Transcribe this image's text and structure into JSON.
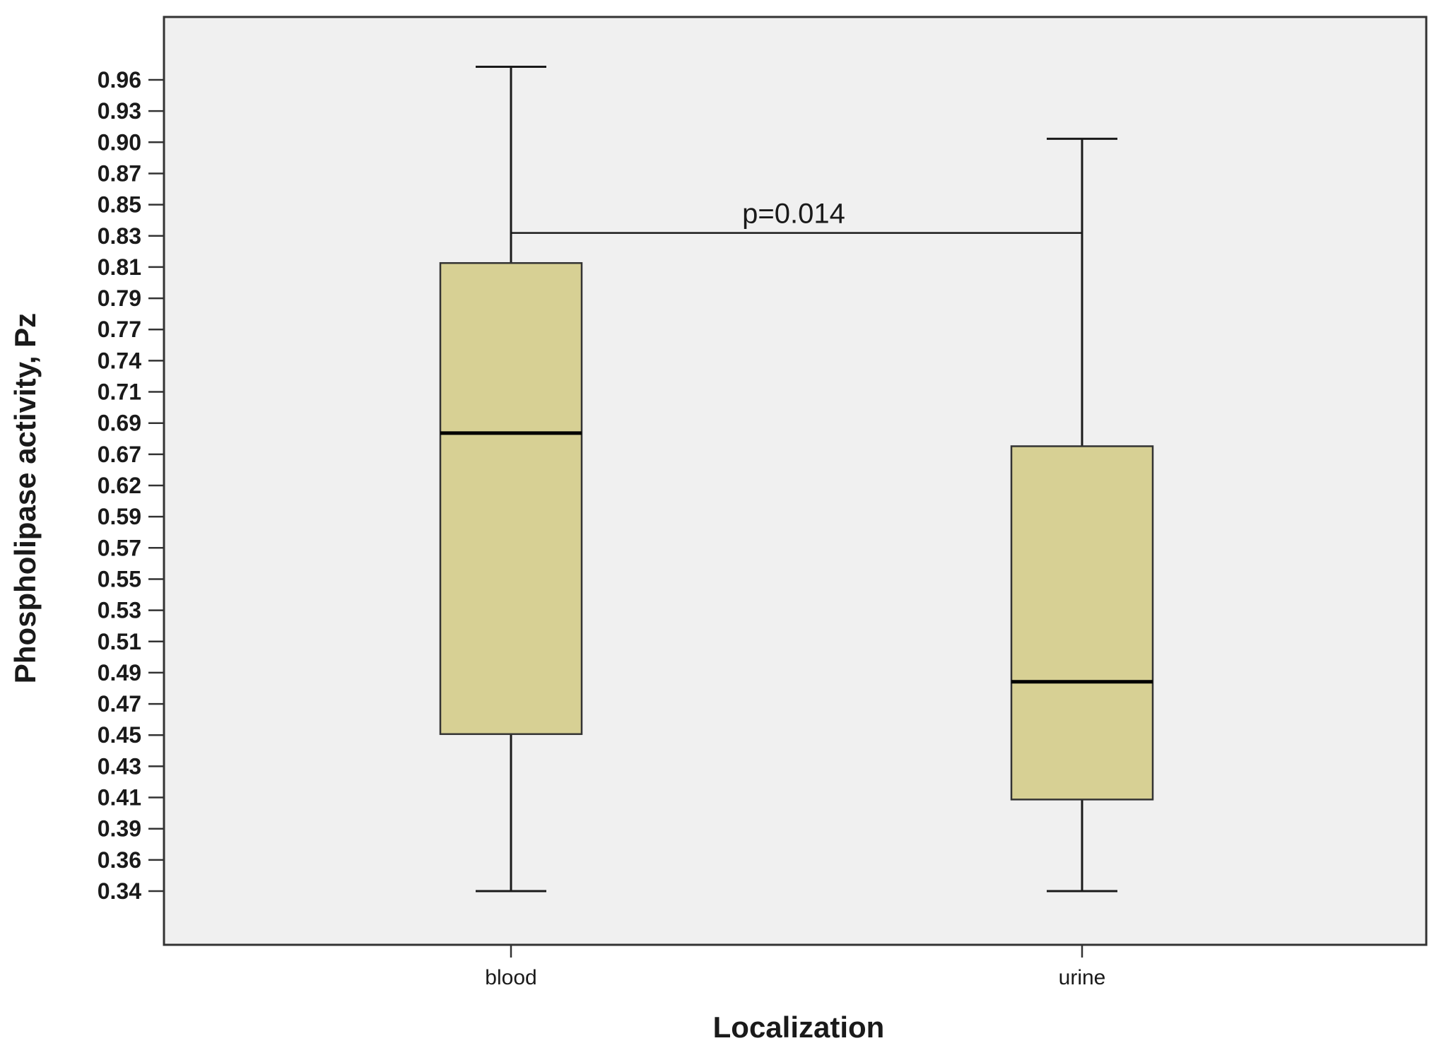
{
  "chart_data": {
    "type": "boxplot",
    "title": "",
    "xlabel": "Localization",
    "ylabel": "Phospholipase activity, Pz",
    "ylim": [
      0.305,
      1.0
    ],
    "yticks": [
      "0.96",
      "0.93",
      "0.90",
      "0.87",
      "0.85",
      "0.83",
      "0.81",
      "0.79",
      "0.77",
      "0.74",
      "0.71",
      "0.69",
      "0.67",
      "0.62",
      "0.59",
      "0.57",
      "0.55",
      "0.53",
      "0.51",
      "0.49",
      "0.47",
      "0.45",
      "0.43",
      "0.41",
      "0.39",
      "0.36",
      "0.34"
    ],
    "ytick_style": "categorical-ordinal",
    "grid": false,
    "legend": "none",
    "categories": [
      "blood",
      "urine"
    ],
    "boxes": [
      {
        "category": "blood",
        "min": 0.34,
        "q1": 0.46,
        "median": 0.69,
        "q3": 0.82,
        "max": 0.97
      },
      {
        "category": "urine",
        "min": 0.34,
        "q1": 0.41,
        "median": 0.5,
        "q3": 0.68,
        "max": 0.915
      }
    ],
    "annotation": {
      "text": "p=0.014",
      "between": [
        "blood",
        "urine"
      ],
      "value": 0.843
    },
    "colors": {
      "box_fill": "#d7d094",
      "plot_background": "#f0f0f0",
      "line": "#1a1a1a"
    }
  }
}
